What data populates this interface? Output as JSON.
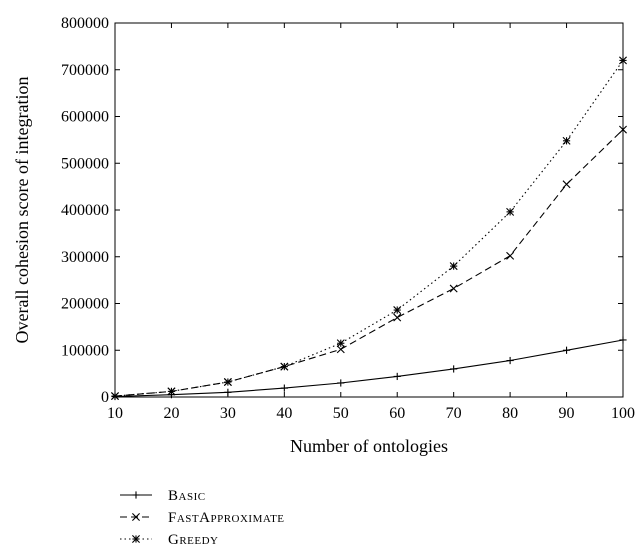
{
  "chart_data": {
    "type": "line",
    "title": "",
    "xlabel": "Number of ontologies",
    "ylabel": "Overall cohesion score of integration",
    "x": [
      10,
      20,
      30,
      40,
      50,
      60,
      70,
      80,
      90,
      100
    ],
    "xlim": [
      10,
      100
    ],
    "ylim": [
      0,
      800000
    ],
    "x_ticks": [
      10,
      20,
      30,
      40,
      50,
      60,
      70,
      80,
      90,
      100
    ],
    "y_ticks": [
      0,
      100000,
      200000,
      300000,
      400000,
      500000,
      600000,
      700000,
      800000
    ],
    "grid": false,
    "legend_position": "bottom-left, below plot",
    "series": [
      {
        "name": "Basic",
        "line_style": "solid",
        "marker": "plus",
        "values": [
          1000,
          5000,
          10000,
          19000,
          30000,
          44000,
          60000,
          78000,
          100000,
          122000
        ]
      },
      {
        "name": "FastApproximate",
        "line_style": "dashed",
        "marker": "x",
        "values": [
          2000,
          12000,
          32000,
          65000,
          102000,
          170000,
          232000,
          302000,
          455000,
          572000
        ]
      },
      {
        "name": "Greedy",
        "line_style": "dotted",
        "marker": "asterisk",
        "values": [
          2000,
          12000,
          32000,
          65000,
          115000,
          186000,
          280000,
          396000,
          548000,
          720000
        ]
      }
    ]
  }
}
